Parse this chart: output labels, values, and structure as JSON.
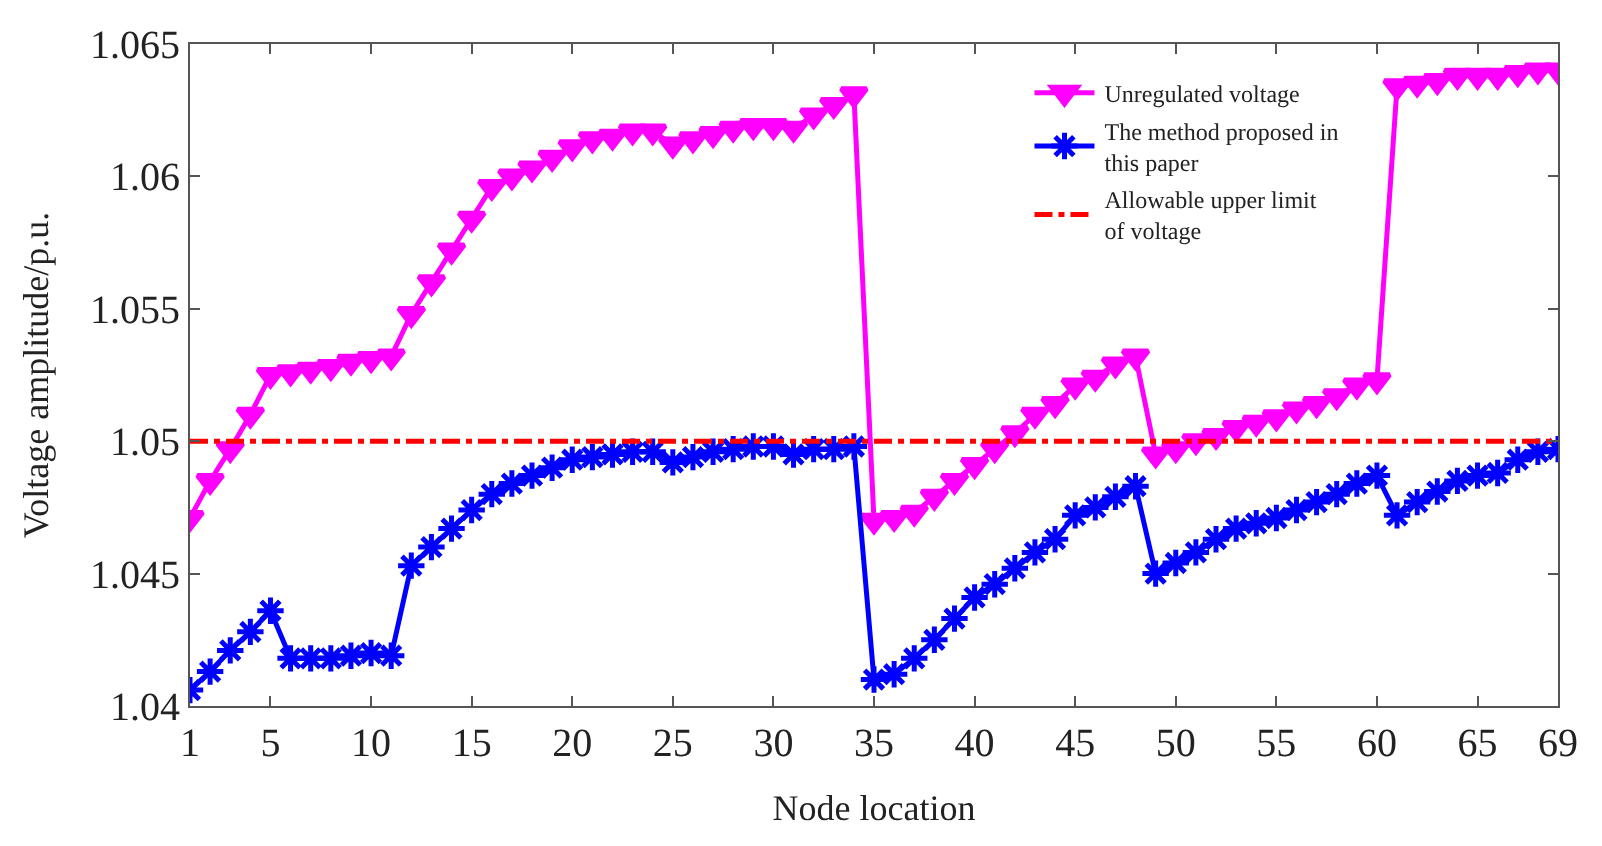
{
  "chart_data": {
    "type": "line",
    "xlabel": "Node location",
    "ylabel": "Voltage amplitude/p.u.",
    "x": [
      1,
      2,
      3,
      4,
      5,
      6,
      7,
      8,
      9,
      10,
      11,
      12,
      13,
      14,
      15,
      16,
      17,
      18,
      19,
      20,
      21,
      22,
      23,
      24,
      25,
      26,
      27,
      28,
      29,
      30,
      31,
      32,
      33,
      34,
      35,
      36,
      37,
      38,
      39,
      40,
      41,
      42,
      43,
      44,
      45,
      46,
      47,
      48,
      49,
      50,
      51,
      52,
      53,
      54,
      55,
      56,
      57,
      58,
      59,
      60,
      61,
      62,
      63,
      64,
      65,
      66,
      67,
      68,
      69
    ],
    "series": [
      {
        "name": "Unregulated voltage",
        "color": "#ff00ff",
        "marker": "triangle",
        "values": [
          1.0471,
          1.0485,
          1.0497,
          1.051,
          1.0525,
          1.0526,
          1.0527,
          1.0528,
          1.053,
          1.0531,
          1.0532,
          1.0548,
          1.056,
          1.0572,
          1.0584,
          1.0596,
          1.06,
          1.0603,
          1.0607,
          1.0611,
          1.0614,
          1.0615,
          1.0617,
          1.0617,
          1.0612,
          1.0614,
          1.0616,
          1.0618,
          1.0619,
          1.0619,
          1.0618,
          1.0623,
          1.0627,
          1.0631,
          1.047,
          1.0471,
          1.0473,
          1.0479,
          1.0485,
          1.0491,
          1.0497,
          1.0503,
          1.051,
          1.0514,
          1.0521,
          1.0524,
          1.0529,
          1.0532,
          1.0495,
          1.0497,
          1.05,
          1.0502,
          1.0505,
          1.0507,
          1.0509,
          1.0512,
          1.0514,
          1.0517,
          1.0521,
          1.0523,
          1.0634,
          1.0635,
          1.0636,
          1.0638,
          1.0638,
          1.0638,
          1.0639,
          1.064,
          1.064
        ]
      },
      {
        "name": "The method proposed in this paper",
        "color": "#0000ff",
        "marker": "cross",
        "values": [
          1.0406,
          1.0413,
          1.0421,
          1.0428,
          1.0436,
          1.0418,
          1.0418,
          1.0418,
          1.0419,
          1.042,
          1.0419,
          1.0453,
          1.046,
          1.0467,
          1.0474,
          1.048,
          1.0484,
          1.0487,
          1.049,
          1.0493,
          1.0494,
          1.0495,
          1.0496,
          1.0496,
          1.0492,
          1.0494,
          1.0496,
          1.0497,
          1.0498,
          1.0498,
          1.0495,
          1.0497,
          1.0497,
          1.0498,
          1.041,
          1.0412,
          1.0418,
          1.0425,
          1.0433,
          1.0441,
          1.0446,
          1.0452,
          1.0458,
          1.0463,
          1.0472,
          1.0475,
          1.0479,
          1.0483,
          1.045,
          1.0454,
          1.0458,
          1.0463,
          1.0467,
          1.0469,
          1.0471,
          1.0474,
          1.0477,
          1.048,
          1.0484,
          1.0487,
          1.0472,
          1.0477,
          1.0481,
          1.0485,
          1.0487,
          1.0488,
          1.0493,
          1.0496,
          1.0497
        ]
      }
    ],
    "ref_lines": [
      {
        "axis": "y",
        "value": 1.05,
        "label": "Allowable upper limit of voltage",
        "color": "#ff0000",
        "line_style": "dashdot"
      }
    ],
    "xlim": [
      1,
      69
    ],
    "xticks": [
      1,
      5,
      10,
      15,
      20,
      25,
      30,
      35,
      40,
      45,
      50,
      55,
      60,
      65,
      69
    ],
    "ylim": [
      1.04,
      1.065
    ],
    "yticks": [
      1.04,
      1.045,
      1.05,
      1.055,
      1.06,
      1.065
    ],
    "legend": "top right"
  }
}
